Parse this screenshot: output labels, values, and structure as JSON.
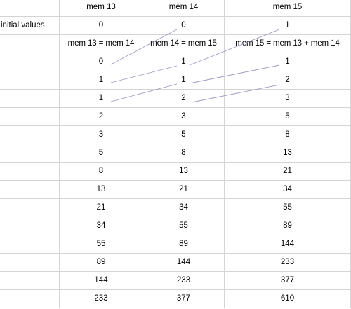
{
  "sheet": {
    "headers": [
      "",
      "mem 13",
      "mem 14",
      "mem 15"
    ],
    "initial_label": "initial values",
    "initial_values": [
      "0",
      "0",
      "1"
    ],
    "formulas": [
      "mem 13 = mem 14",
      "mem 14 = mem 15",
      "mem 15 = mem 13 + mem 14"
    ],
    "rows": [
      [
        "0",
        "1",
        "1"
      ],
      [
        "1",
        "1",
        "2"
      ],
      [
        "1",
        "2",
        "3"
      ],
      [
        "2",
        "3",
        "5"
      ],
      [
        "3",
        "5",
        "8"
      ],
      [
        "5",
        "8",
        "13"
      ],
      [
        "8",
        "13",
        "21"
      ],
      [
        "13",
        "21",
        "34"
      ],
      [
        "21",
        "34",
        "55"
      ],
      [
        "34",
        "55",
        "89"
      ],
      [
        "55",
        "89",
        "144"
      ],
      [
        "89",
        "144",
        "233"
      ],
      [
        "144",
        "233",
        "377"
      ],
      [
        "233",
        "377",
        "610"
      ]
    ],
    "arrow_color": "#9a9ac8",
    "gridline_color": "#d4d4d4"
  }
}
